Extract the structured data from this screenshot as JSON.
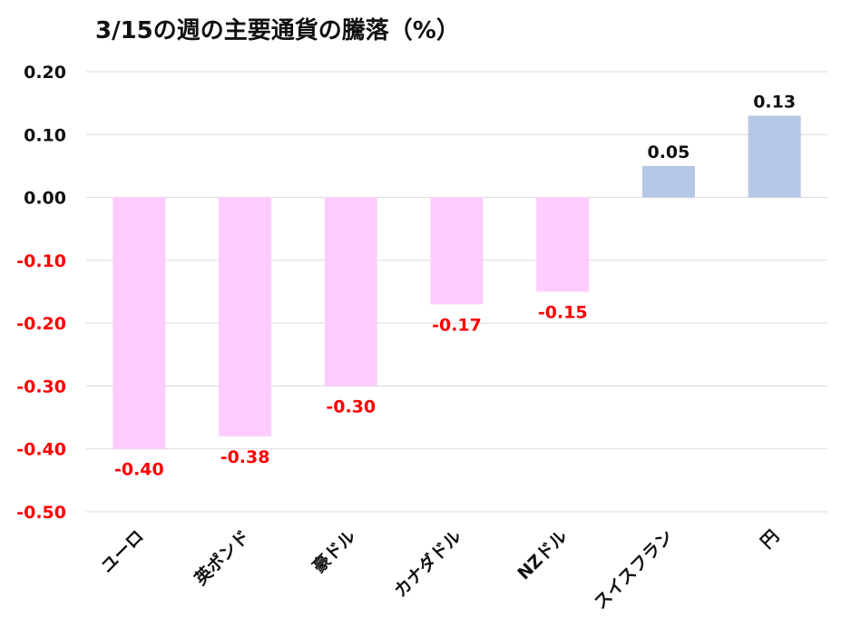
{
  "chart_data": {
    "type": "bar",
    "title": "3/15の週の主要通貨の騰落（%）",
    "categories": [
      "ユーロ",
      "英ポンド",
      "豪ドル",
      "カナダドル",
      "NZドル",
      "スイスフラン",
      "円"
    ],
    "values": [
      -0.4,
      -0.38,
      -0.3,
      -0.17,
      -0.15,
      0.05,
      0.13
    ],
    "data_labels": [
      "-0.40",
      "-0.38",
      "-0.30",
      "-0.17",
      "-0.15",
      "0.05",
      "0.13"
    ],
    "ylim": [
      -0.5,
      0.2
    ],
    "yticks": [
      0.2,
      0.1,
      0.0,
      -0.1,
      -0.2,
      -0.3,
      -0.4,
      -0.5
    ],
    "ytick_labels": [
      "0.20",
      "0.10",
      "0.00",
      "-0.10",
      "-0.20",
      "-0.30",
      "-0.40",
      "-0.50"
    ],
    "grid": true,
    "legend": "none",
    "colors": {
      "positive_bar": "#b4c7e7",
      "negative_bar": "#ffccff",
      "positive_text": "#111111",
      "negative_text": "#ff0000",
      "grid": "#d9d9d9"
    }
  }
}
